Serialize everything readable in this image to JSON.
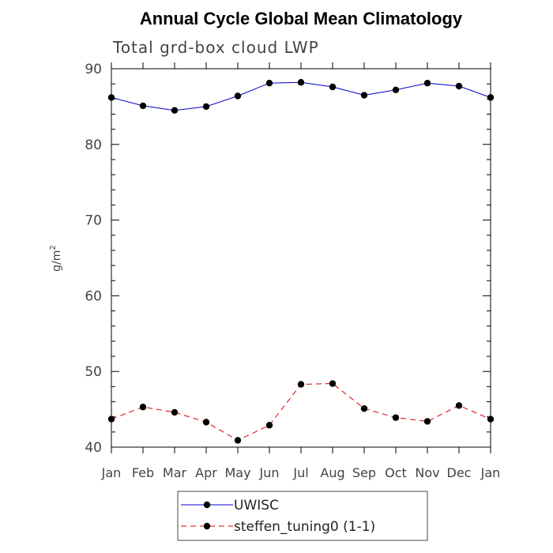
{
  "chart_data": {
    "type": "line",
    "title": "Annual Cycle Global Mean Climatology",
    "subtitle": "Total grd-box cloud LWP",
    "ylabel": "g/m",
    "ylabel_superscript": "2",
    "xlabel": "",
    "categories": [
      "Jan",
      "Feb",
      "Mar",
      "Apr",
      "May",
      "Jun",
      "Jul",
      "Aug",
      "Sep",
      "Oct",
      "Nov",
      "Dec",
      "Jan"
    ],
    "ylim": [
      40,
      90
    ],
    "yticks": [
      "40",
      "50",
      "60",
      "70",
      "80",
      "90"
    ],
    "series": [
      {
        "name": "UWISC",
        "color": "#0000cc",
        "style": "solid",
        "values": [
          86.2,
          85.1,
          84.5,
          85.0,
          86.4,
          88.1,
          88.2,
          87.6,
          86.5,
          87.2,
          88.1,
          87.7,
          86.2
        ]
      },
      {
        "name": "steffen_tuning0 (1-1)",
        "color": "#dd0000",
        "style": "dashed",
        "values": [
          43.7,
          45.3,
          44.6,
          43.3,
          40.9,
          42.9,
          48.3,
          48.4,
          45.1,
          43.9,
          43.4,
          45.5,
          43.7
        ]
      }
    ],
    "legend": {
      "position": "bottom-center",
      "entries": [
        "UWISC",
        "steffen_tuning0 (1-1)"
      ]
    }
  }
}
